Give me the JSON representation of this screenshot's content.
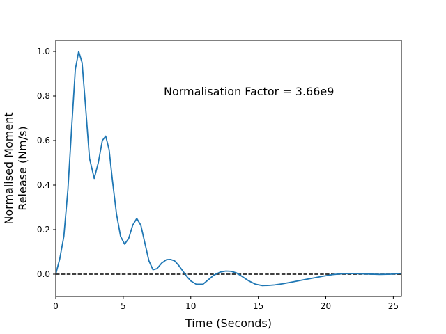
{
  "chart_data": {
    "type": "line",
    "title": "",
    "xlabel": "Time (Seconds)",
    "ylabel_lines": [
      "Normalised Moment",
      "Release (Nm/s)"
    ],
    "annotation": "Normalisation Factor = 3.66e9",
    "xlim": [
      0,
      25.6
    ],
    "ylim": [
      -0.1,
      1.05
    ],
    "xticks": [
      {
        "value": 0,
        "label": "0"
      },
      {
        "value": 5,
        "label": "5"
      },
      {
        "value": 10,
        "label": "10"
      },
      {
        "value": 15,
        "label": "15"
      },
      {
        "value": 20,
        "label": "20"
      },
      {
        "value": 25,
        "label": "25"
      }
    ],
    "yticks": [
      {
        "value": 0.0,
        "label": "0.0"
      },
      {
        "value": 0.2,
        "label": "0.2"
      },
      {
        "value": 0.4,
        "label": "0.4"
      },
      {
        "value": 0.6,
        "label": "0.6"
      },
      {
        "value": 0.8,
        "label": "0.8"
      },
      {
        "value": 1.0,
        "label": "1.0"
      }
    ],
    "grid": false,
    "reference_line": {
      "y": 0.0,
      "style": "dashed",
      "color": "#000000"
    },
    "series": [
      {
        "color": "#1f77b4",
        "x": [
          0,
          0.3,
          0.6,
          0.9,
          1.2,
          1.45,
          1.7,
          1.95,
          2.2,
          2.5,
          2.85,
          3.15,
          3.45,
          3.7,
          3.95,
          4.2,
          4.5,
          4.8,
          5.1,
          5.4,
          5.7,
          6.0,
          6.3,
          6.6,
          6.9,
          7.2,
          7.5,
          7.85,
          8.2,
          8.5,
          8.8,
          9.1,
          9.4,
          9.7,
          10.0,
          10.4,
          10.9,
          11.3,
          11.7,
          12.2,
          12.6,
          13.0,
          13.4,
          13.8,
          14.3,
          14.8,
          15.3,
          15.8,
          16.2,
          16.8,
          17.5,
          18.2,
          19.0,
          19.8,
          20.5,
          21.2,
          22.0,
          23.0,
          24.0,
          24.8,
          25.6
        ],
        "y": [
          0.0,
          0.07,
          0.17,
          0.38,
          0.68,
          0.92,
          1.0,
          0.95,
          0.76,
          0.52,
          0.43,
          0.5,
          0.6,
          0.62,
          0.56,
          0.42,
          0.27,
          0.17,
          0.135,
          0.16,
          0.22,
          0.25,
          0.22,
          0.14,
          0.06,
          0.02,
          0.025,
          0.05,
          0.065,
          0.066,
          0.06,
          0.04,
          0.015,
          -0.01,
          -0.03,
          -0.045,
          -0.045,
          -0.025,
          -0.005,
          0.01,
          0.014,
          0.013,
          0.005,
          -0.01,
          -0.03,
          -0.045,
          -0.051,
          -0.05,
          -0.048,
          -0.043,
          -0.035,
          -0.027,
          -0.018,
          -0.009,
          -0.002,
          0.002,
          0.003,
          0.001,
          -0.001,
          0.0,
          0.004
        ]
      }
    ]
  }
}
